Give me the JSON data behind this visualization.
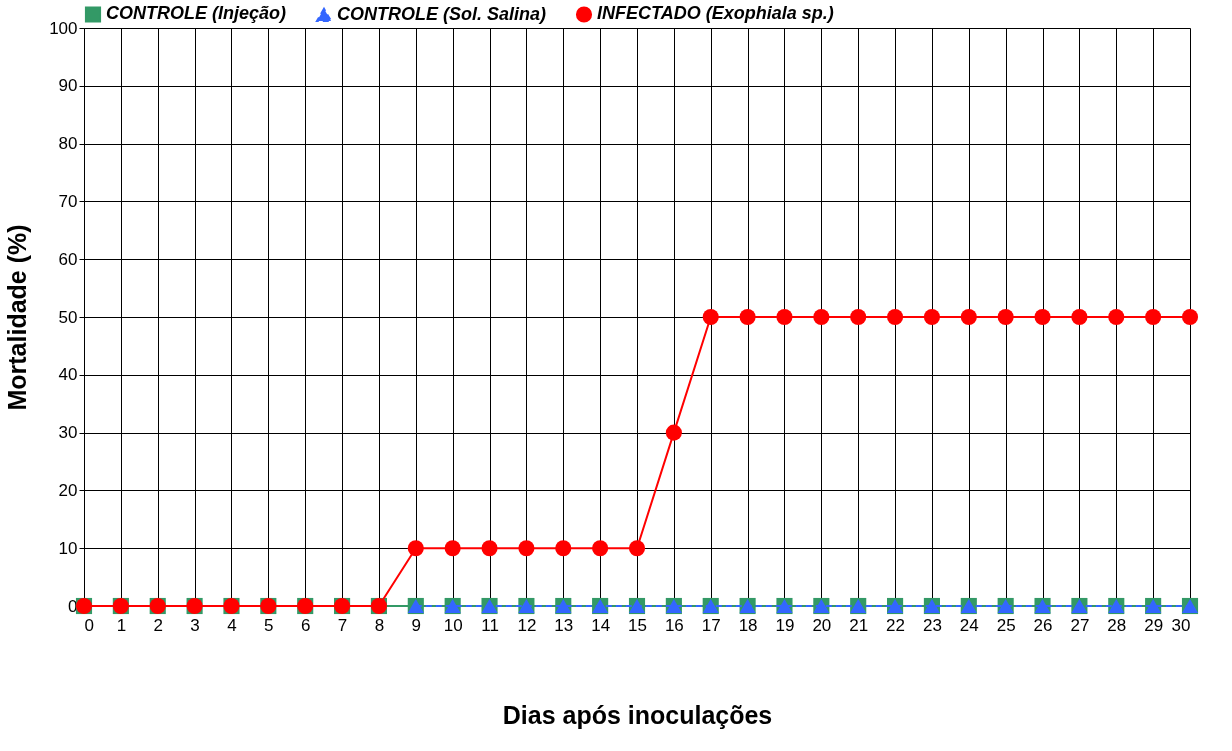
{
  "chart_data": {
    "type": "line",
    "xlabel": "Dias após inoculações",
    "ylabel": "Mortalidade (%)",
    "x": [
      0,
      1,
      2,
      3,
      4,
      5,
      6,
      7,
      8,
      9,
      10,
      11,
      12,
      13,
      14,
      15,
      16,
      17,
      18,
      19,
      20,
      21,
      22,
      23,
      24,
      25,
      26,
      27,
      28,
      29,
      30
    ],
    "series": [
      {
        "name": "CONTROLE (Injeção)",
        "color": "#339966",
        "marker": "square",
        "line_style": "solid",
        "values": [
          0,
          0,
          0,
          0,
          0,
          0,
          0,
          0,
          0,
          0,
          0,
          0,
          0,
          0,
          0,
          0,
          0,
          0,
          0,
          0,
          0,
          0,
          0,
          0,
          0,
          0,
          0,
          0,
          0,
          0,
          0
        ]
      },
      {
        "name": "CONTROLE (Sol. Salina)",
        "color": "#3366ff",
        "marker": "triangle",
        "line_style": "dashed",
        "values": [
          null,
          null,
          null,
          null,
          null,
          null,
          null,
          null,
          null,
          0,
          0,
          0,
          0,
          0,
          0,
          0,
          0,
          0,
          0,
          0,
          0,
          0,
          0,
          0,
          0,
          0,
          0,
          0,
          0,
          0,
          0
        ]
      },
      {
        "name": "INFECTADO (Exophiala sp.)",
        "color": "#ff0000",
        "marker": "circle",
        "line_style": "solid",
        "values": [
          0,
          0,
          0,
          0,
          0,
          0,
          0,
          0,
          0,
          10,
          10,
          10,
          10,
          10,
          10,
          10,
          30,
          50,
          50,
          50,
          50,
          50,
          50,
          50,
          50,
          50,
          50,
          50,
          50,
          50,
          50
        ]
      }
    ],
    "xlim": [
      0,
      30
    ],
    "xticks": [
      0,
      1,
      2,
      3,
      4,
      5,
      6,
      7,
      8,
      9,
      10,
      11,
      12,
      13,
      14,
      15,
      16,
      17,
      18,
      19,
      20,
      21,
      22,
      23,
      24,
      25,
      26,
      27,
      28,
      29,
      30
    ],
    "ylim": [
      0,
      100
    ],
    "yticks": [
      0,
      10,
      20,
      30,
      40,
      50,
      60,
      70,
      80,
      90,
      100
    ],
    "grid": true,
    "legend": "top"
  }
}
